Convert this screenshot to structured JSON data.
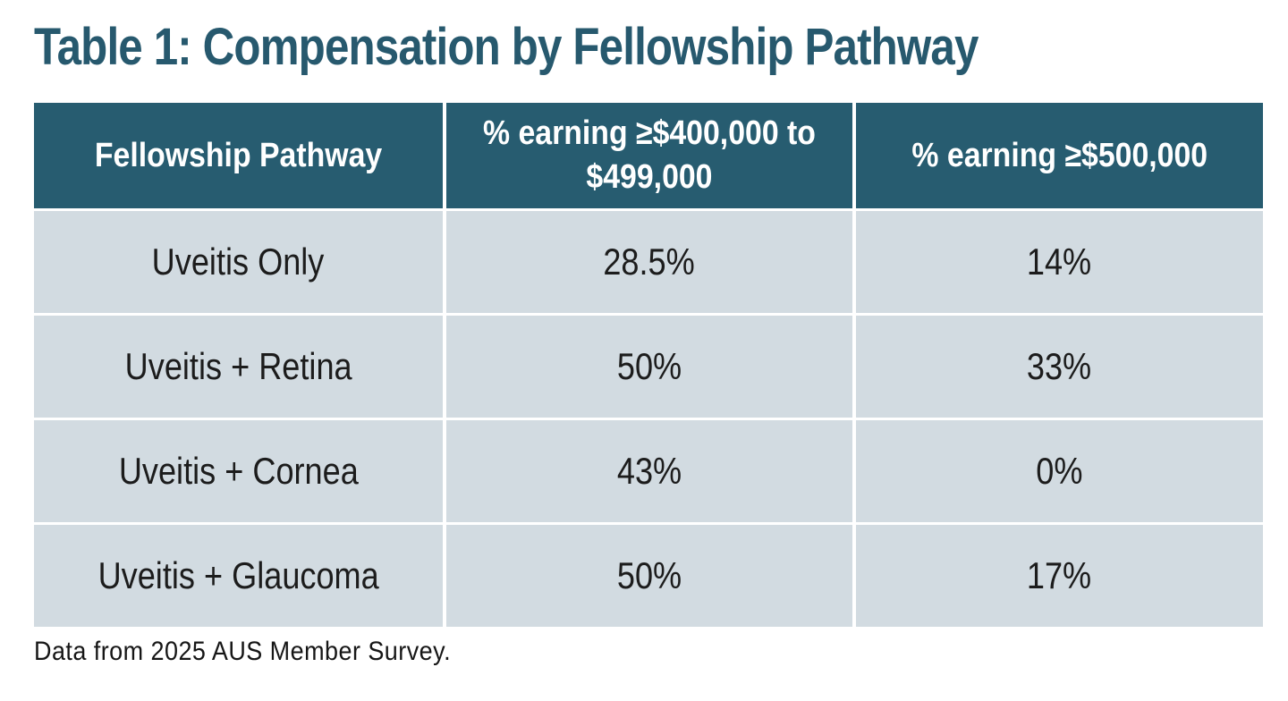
{
  "page": {
    "title": "Table 1: Compensation by Fellowship Pathway",
    "footnote": "Data from 2025 AUS Member Survey."
  },
  "colors": {
    "header_background": "#275c70",
    "title_text": "#27596e",
    "row_background": "#d2dbe1",
    "header_text": "#ffffff",
    "body_text": "#1c1c1c",
    "divider": "#ffffff"
  },
  "table": {
    "headers": [
      "Fellowship Pathway",
      "% earning ≥$400,000 to\n$499,000",
      "% earning ≥$500,000"
    ],
    "rows": [
      {
        "cells": [
          "Uveitis Only",
          "28.5%",
          "14%"
        ]
      },
      {
        "cells": [
          "Uveitis + Retina",
          "50%",
          "33%"
        ]
      },
      {
        "cells": [
          "Uveitis + Cornea",
          "43%",
          "0%"
        ]
      },
      {
        "cells": [
          "Uveitis + Glaucoma",
          "50%",
          "17%"
        ]
      }
    ]
  },
  "chart_data": {
    "type": "table",
    "title": "Table 1: Compensation by Fellowship Pathway",
    "columns": [
      "Fellowship Pathway",
      "% earning ≥$400,000 to $499,000",
      "% earning ≥$500,000"
    ],
    "categories": [
      "Uveitis Only",
      "Uveitis + Retina",
      "Uveitis + Cornea",
      "Uveitis + Glaucoma"
    ],
    "series": [
      {
        "name": "% earning ≥$400,000 to $499,000",
        "values": [
          28.5,
          50,
          43,
          50
        ]
      },
      {
        "name": "% earning ≥$500,000",
        "values": [
          14,
          33,
          0,
          17
        ]
      }
    ],
    "footnote": "Data from 2025 AUS Member Survey."
  }
}
